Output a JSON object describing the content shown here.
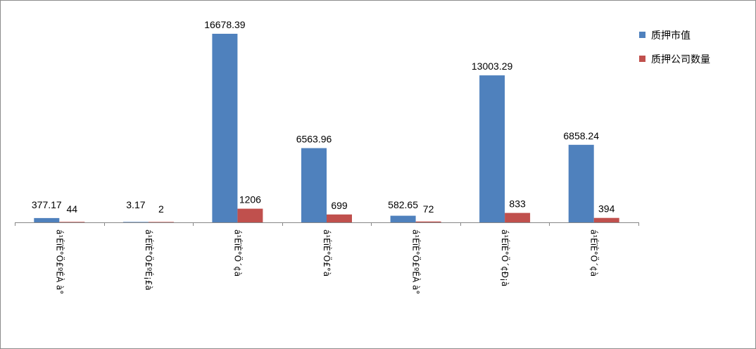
{
  "chart_data": {
    "type": "bar",
    "categories": [
      "á¹ÉïÈ°Ö£ºÉÀ à°",
      "á¹ÉïÈ°Ö£ºÉ¡£à",
      "á¹ÉïÈ°Ö´¢à",
      "á¹ÉïÈ°Ö£°à",
      "á¹ÉïÈ°Ö£ºÉÀ à°",
      "á¹ÉïÈ°Ö´¢Ð¡à",
      "á¹ÉïÈ°Ö´¢à"
    ],
    "series": [
      {
        "name": "质押市值",
        "color": "#4f81bd",
        "values": [
          377.17,
          3.17,
          16678.39,
          6563.96,
          582.65,
          13003.29,
          6858.24
        ],
        "labels": [
          "377.17",
          "3.17",
          "16678.39",
          "6563.96",
          "582.65",
          "13003.29",
          "6858.24"
        ]
      },
      {
        "name": "质押公司数量",
        "color": "#c0504d",
        "values": [
          44,
          2,
          1206,
          699,
          72,
          833,
          394
        ],
        "labels": [
          "44",
          "2",
          "1206",
          "699",
          "72",
          "833",
          "394"
        ]
      }
    ],
    "title": "",
    "xlabel": "",
    "ylabel": "",
    "ylim": [
      0,
      17800
    ],
    "grid": false,
    "legend": "top-right"
  }
}
